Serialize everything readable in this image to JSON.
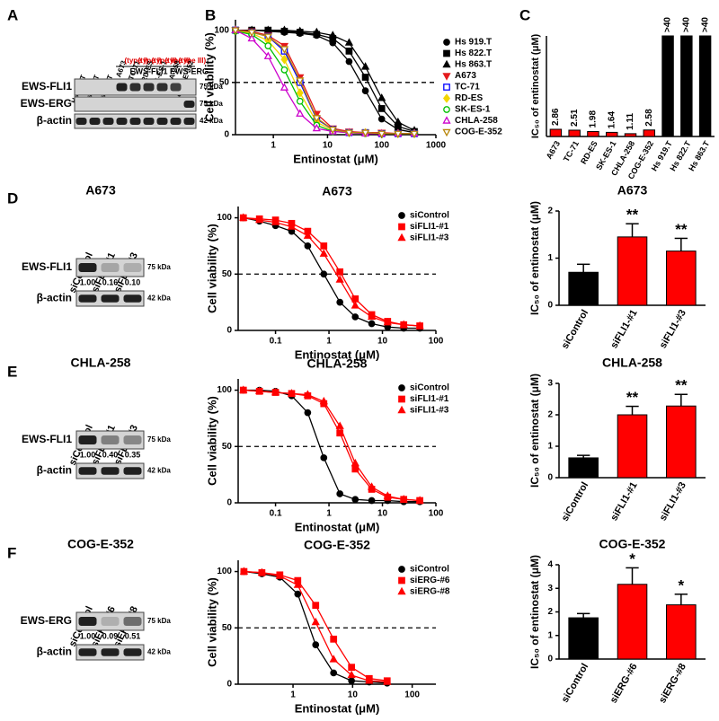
{
  "panels": [
    "A",
    "B",
    "C",
    "D",
    "E",
    "F"
  ],
  "blots": [
    {
      "lanes": [
        {
          "name": "Hs 919.T"
        },
        {
          "name": "Hs 822.T"
        },
        {
          "name": "Hs 863.T"
        },
        {
          "name": "A673",
          "type": "(type I)"
        },
        {
          "name": "TC-71",
          "type": "(type I)"
        },
        {
          "name": "RD-ES",
          "type": "(type II)"
        },
        {
          "name": "SK-ES-1",
          "type": "(type II)"
        },
        {
          "name": "CHLA-258",
          "type": "(type III)"
        },
        {
          "name": "COG-E-352"
        }
      ],
      "groups": [
        "EWS-FLI1",
        "EWS-ERG"
      ],
      "rows": [
        {
          "name": "EWS-FLI1",
          "kda": "75 kDa"
        },
        {
          "name": "EWS-ERG",
          "kda": "75 kDa"
        },
        {
          "name": "β-actin",
          "kda": "42 kDa"
        }
      ]
    },
    {
      "title": "A673",
      "lanes": [
        {
          "name": "siControl"
        },
        {
          "name": "siFLI1-#1"
        },
        {
          "name": "siFLI1-#3"
        }
      ],
      "rows": [
        {
          "name": "EWS-FLI1",
          "kda": "75 kDa",
          "quant": [
            "1.00",
            "0.16",
            "0.10"
          ]
        },
        {
          "name": "β-actin",
          "kda": "42 kDa"
        }
      ]
    },
    {
      "title": "CHLA-258",
      "lanes": [
        {
          "name": "siControl"
        },
        {
          "name": "siFLI1-#1"
        },
        {
          "name": "siFLI1-#3"
        }
      ],
      "rows": [
        {
          "name": "EWS-FLI1",
          "kda": "75 kDa",
          "quant": [
            "1.00",
            "0.40",
            "0.35"
          ]
        },
        {
          "name": "β-actin",
          "kda": "42 kDa"
        }
      ]
    },
    {
      "title": "COG-E-352",
      "lanes": [
        {
          "name": "siControl"
        },
        {
          "name": "siERG-#6"
        },
        {
          "name": "siERG-#8"
        }
      ],
      "rows": [
        {
          "name": "EWS-ERG",
          "kda": "75 kDa",
          "quant": [
            "1.00",
            "0.09",
            "0.51"
          ]
        },
        {
          "name": "β-actin",
          "kda": "42 kDa"
        }
      ]
    }
  ],
  "chart_data": [
    {
      "type": "line",
      "xlog": true,
      "x_label": "Entinostat (μM)",
      "y_label": "Cell viability (%)",
      "x": [
        0.2,
        0.4,
        0.8,
        1.6,
        3.1,
        6.3,
        12.5,
        25,
        50,
        100,
        200,
        400
      ],
      "xlim": [
        0.2,
        1000
      ],
      "xticks": [
        1,
        10,
        100,
        1000
      ],
      "ylim": [
        0,
        110
      ],
      "yticks": [
        0,
        50,
        100
      ],
      "hline": 50,
      "series": [
        {
          "name": "Hs 919.T",
          "color": "#000000",
          "marker": "circle",
          "filled": true,
          "values": [
            100,
            100,
            99,
            98,
            97,
            95,
            88,
            70,
            42,
            15,
            5,
            2
          ]
        },
        {
          "name": "Hs 822.T",
          "color": "#000000",
          "marker": "square",
          "filled": true,
          "values": [
            100,
            100,
            100,
            99,
            98,
            96,
            92,
            80,
            55,
            25,
            8,
            3
          ]
        },
        {
          "name": "Hs 863.T",
          "color": "#000000",
          "marker": "triangle",
          "filled": true,
          "values": [
            100,
            100,
            100,
            100,
            99,
            98,
            95,
            88,
            65,
            35,
            12,
            4
          ]
        },
        {
          "name": "A673",
          "color": "#e41a1c",
          "marker": "triangle-down",
          "filled": true,
          "values": [
            100,
            99,
            95,
            85,
            55,
            20,
            6,
            3,
            2,
            2,
            1,
            1
          ]
        },
        {
          "name": "TC-71",
          "color": "#0000ff",
          "marker": "square",
          "filled": false,
          "values": [
            100,
            98,
            94,
            80,
            50,
            15,
            5,
            2,
            2,
            1,
            1,
            1
          ]
        },
        {
          "name": "RD-ES",
          "color": "#f2d500",
          "marker": "diamond",
          "filled": true,
          "values": [
            100,
            97,
            90,
            72,
            40,
            12,
            4,
            2,
            2,
            1,
            1,
            1
          ]
        },
        {
          "name": "SK-ES-1",
          "color": "#00c000",
          "marker": "circle",
          "filled": false,
          "values": [
            99,
            96,
            85,
            62,
            32,
            9,
            3,
            2,
            1,
            1,
            1,
            1
          ]
        },
        {
          "name": "CHLA-258",
          "color": "#cc00cc",
          "marker": "triangle",
          "filled": false,
          "values": [
            100,
            92,
            75,
            45,
            20,
            6,
            3,
            2,
            1,
            1,
            1,
            1
          ]
        },
        {
          "name": "COG-E-352",
          "color": "#b8860b",
          "marker": "triangle-down",
          "filled": false,
          "values": [
            100,
            98,
            94,
            82,
            52,
            16,
            5,
            2,
            2,
            1,
            1,
            1
          ]
        }
      ]
    },
    {
      "type": "bar",
      "y_label": "IC₅₀ of entinostat (μM)",
      "categories": [
        "A673",
        "TC-71",
        "RD-ES",
        "SK-ES-1",
        "CHLA-258",
        "COG-E-352",
        "Hs 919.T",
        "Hs 822.T",
        "Hs 863.T"
      ],
      "values": [
        2.86,
        2.51,
        1.98,
        1.64,
        1.11,
        2.58,
        40,
        40,
        40
      ],
      "value_labels": [
        "2.86",
        "2.51",
        "1.98",
        "1.64",
        "1.11",
        "2.58",
        ">40",
        ">40",
        ">40"
      ],
      "colors": [
        "#ff0000",
        "#ff0000",
        "#ff0000",
        "#ff0000",
        "#ff0000",
        "#ff0000",
        "#000000",
        "#000000",
        "#000000"
      ],
      "ylim": [
        0,
        40
      ]
    },
    {
      "type": "line",
      "xlog": true,
      "title": "A673",
      "x_label": "Entinostat (μM)",
      "y_label": "Cell viability (%)",
      "x": [
        0.025,
        0.05,
        0.1,
        0.2,
        0.4,
        0.8,
        1.6,
        3.1,
        6.3,
        12.5,
        25,
        50
      ],
      "xlim": [
        0.02,
        100
      ],
      "xticks": [
        0.1,
        1,
        10,
        100
      ],
      "ylim": [
        0,
        110
      ],
      "yticks": [
        0,
        50,
        100
      ],
      "hline": 50,
      "series": [
        {
          "name": "siControl",
          "color": "#000000",
          "marker": "circle",
          "filled": true,
          "values": [
            100,
            97,
            93,
            88,
            75,
            50,
            25,
            12,
            6,
            3,
            2,
            2
          ]
        },
        {
          "name": "siFLI1-#1",
          "color": "#ff0000",
          "marker": "square",
          "filled": true,
          "values": [
            100,
            99,
            98,
            95,
            88,
            75,
            52,
            28,
            14,
            8,
            5,
            4
          ]
        },
        {
          "name": "siFLI1-#3",
          "color": "#ff0000",
          "marker": "triangle",
          "filled": true,
          "values": [
            100,
            98,
            96,
            92,
            84,
            68,
            45,
            22,
            12,
            7,
            5,
            4
          ]
        }
      ]
    },
    {
      "type": "bar",
      "title": "A673",
      "y_label": "IC₅₀ of entinostat (μM)",
      "categories": [
        "siControl",
        "siFLI1-#1",
        "siFLI1-#3"
      ],
      "values": [
        0.7,
        1.45,
        1.15
      ],
      "errors": [
        0.17,
        0.28,
        0.27
      ],
      "significance": [
        null,
        "**",
        "**"
      ],
      "colors": [
        "#000000",
        "#ff0000",
        "#ff0000"
      ],
      "ylim": [
        0,
        2
      ],
      "yticks": [
        0,
        1,
        2
      ]
    },
    {
      "type": "line",
      "xlog": true,
      "title": "CHLA-258",
      "x_label": "Entinostat (μM)",
      "y_label": "Cell viability (%)",
      "x": [
        0.025,
        0.05,
        0.1,
        0.2,
        0.4,
        0.8,
        1.6,
        3.1,
        6.3,
        12.5,
        25,
        50
      ],
      "xlim": [
        0.02,
        100
      ],
      "xticks": [
        0.1,
        1,
        10,
        100
      ],
      "ylim": [
        0,
        110
      ],
      "yticks": [
        0,
        50,
        100
      ],
      "hline": 50,
      "series": [
        {
          "name": "siControl",
          "color": "#000000",
          "marker": "circle",
          "filled": true,
          "values": [
            100,
            100,
            99,
            95,
            80,
            40,
            8,
            3,
            2,
            2,
            1,
            1
          ]
        },
        {
          "name": "siFLI1-#1",
          "color": "#ff0000",
          "marker": "square",
          "filled": true,
          "values": [
            100,
            99,
            98,
            97,
            95,
            88,
            62,
            30,
            12,
            5,
            3,
            2
          ]
        },
        {
          "name": "siFLI1-#3",
          "color": "#ff0000",
          "marker": "triangle",
          "filled": true,
          "values": [
            100,
            99,
            98,
            97,
            96,
            90,
            68,
            35,
            14,
            6,
            3,
            2
          ]
        }
      ]
    },
    {
      "type": "bar",
      "title": "CHLA-258",
      "y_label": "IC₅₀ of entinostat (μM)",
      "categories": [
        "siControl",
        "siFLI1-#1",
        "siFLI1-#3"
      ],
      "values": [
        0.63,
        2.0,
        2.28
      ],
      "errors": [
        0.08,
        0.27,
        0.37
      ],
      "significance": [
        null,
        "**",
        "**"
      ],
      "colors": [
        "#000000",
        "#ff0000",
        "#ff0000"
      ],
      "ylim": [
        0,
        3
      ],
      "yticks": [
        0,
        1,
        2,
        3
      ]
    },
    {
      "type": "line",
      "xlog": true,
      "title": "COG-E-352",
      "x_label": "Entinostat (μM)",
      "y_label": "Cell viability (%)",
      "x": [
        0.15,
        0.3,
        0.6,
        1.2,
        2.4,
        4.8,
        9.6,
        19,
        38
      ],
      "xlim": [
        0.12,
        250
      ],
      "xticks": [
        1,
        10,
        100
      ],
      "ylim": [
        0,
        110
      ],
      "yticks": [
        0,
        50,
        100
      ],
      "hline": 50,
      "series": [
        {
          "name": "siControl",
          "color": "#000000",
          "marker": "circle",
          "filled": true,
          "values": [
            100,
            98,
            95,
            80,
            35,
            10,
            3,
            2,
            1
          ]
        },
        {
          "name": "siERG-#6",
          "color": "#ff0000",
          "marker": "square",
          "filled": true,
          "values": [
            100,
            99,
            97,
            92,
            70,
            40,
            15,
            5,
            3
          ]
        },
        {
          "name": "siERG-#8",
          "color": "#ff0000",
          "marker": "triangle",
          "filled": true,
          "values": [
            100,
            99,
            96,
            88,
            55,
            22,
            8,
            3,
            2
          ]
        }
      ]
    },
    {
      "type": "bar",
      "title": "COG-E-352",
      "y_label": "IC₅₀ of entinostat (μM)",
      "categories": [
        "siControl",
        "siERG-#6",
        "siERG-#8"
      ],
      "values": [
        1.75,
        3.17,
        2.3
      ],
      "errors": [
        0.18,
        0.7,
        0.45
      ],
      "significance": [
        null,
        "*",
        "*"
      ],
      "colors": [
        "#000000",
        "#ff0000",
        "#ff0000"
      ],
      "ylim": [
        0,
        4
      ],
      "yticks": [
        0,
        1,
        2,
        3,
        4
      ]
    }
  ]
}
